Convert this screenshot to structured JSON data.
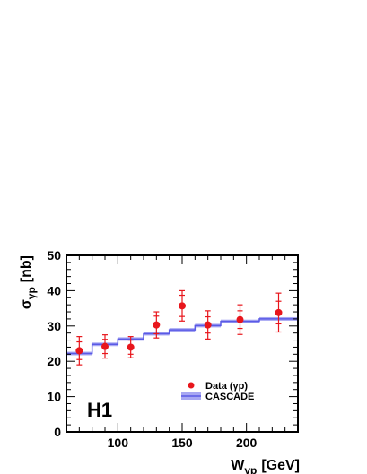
{
  "chart_data": {
    "type": "scatter",
    "experiment_label": "H1",
    "xlabel": {
      "main": "W",
      "sub": "γp",
      "unit": "[GeV]"
    },
    "ylabel": {
      "main": "σ",
      "sub": "γp",
      "unit": "[nb]"
    },
    "xlim": [
      60,
      240
    ],
    "ylim": [
      0,
      50
    ],
    "xticks": [
      100,
      150,
      200
    ],
    "yticks": [
      0,
      10,
      20,
      30,
      40,
      50
    ],
    "grid": false,
    "legend": {
      "position": "bottom-right",
      "entries": [
        {
          "label": "Data (γp)",
          "marker": "dot"
        },
        {
          "label": "CASCADE",
          "marker": "band"
        }
      ]
    },
    "series": [
      {
        "name": "Data (γp)",
        "kind": "points",
        "color": "#e8161c",
        "x": [
          70,
          90,
          110,
          130,
          150,
          170,
          195,
          225
        ],
        "y": [
          23.0,
          24.2,
          24.0,
          30.3,
          35.7,
          30.3,
          31.8,
          33.8
        ],
        "stat_err": [
          2.5,
          2.0,
          2.0,
          2.5,
          3.0,
          2.3,
          2.5,
          3.2
        ],
        "tot_err": [
          4.0,
          3.3,
          3.0,
          3.7,
          4.3,
          4.0,
          4.2,
          5.5
        ]
      },
      {
        "name": "CASCADE",
        "kind": "step_band",
        "color": "#5a5ae6",
        "band_color": "#a7a7f2",
        "edges": [
          60,
          80,
          100,
          120,
          140,
          160,
          180,
          210,
          240
        ],
        "values": [
          22.2,
          24.8,
          26.3,
          27.8,
          28.9,
          30.1,
          31.3,
          32.0
        ],
        "band_halfwidth": 0.5
      }
    ]
  }
}
